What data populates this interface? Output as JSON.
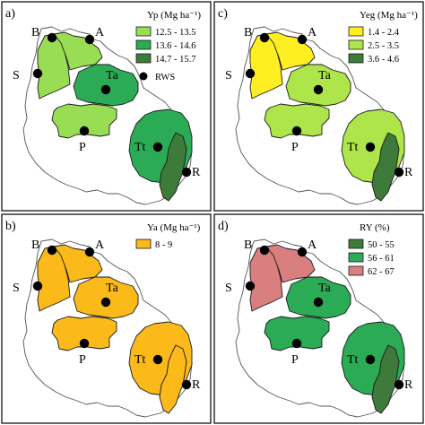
{
  "colors": {
    "green_light": "#99dd55",
    "green_mid": "#2bab55",
    "green_dark": "#3e7a3a",
    "yellow": "#ffee22",
    "yellow_green": "#aee54a",
    "orange": "#fbb91a",
    "pink": "#d97f7f"
  },
  "sites": {
    "B": "B",
    "A": "A",
    "S": "S",
    "Ta": "Ta",
    "P": "P",
    "Tt": "Tt",
    "R": "R"
  },
  "panels": [
    {
      "letter": "a)",
      "legend_title": "Yp (Mg ha⁻¹)",
      "legend": [
        {
          "label": "12.5 - 13.5",
          "color": "#99dd55"
        },
        {
          "label": "13.6 - 14.6",
          "color": "#2bab55"
        },
        {
          "label": "14.7 - 15.7",
          "color": "#3e7a3a"
        }
      ],
      "extra_legend": "RWS",
      "regions": {
        "west": "#99dd55",
        "north": "#99dd55",
        "ta": "#2bab55",
        "p": "#99dd55",
        "tt": "#2bab55",
        "r": "#3e7a3a"
      }
    },
    {
      "letter": "c)",
      "legend_title": "Yeg (Mg ha⁻¹)",
      "legend": [
        {
          "label": "1.4 - 2.4",
          "color": "#ffee22"
        },
        {
          "label": "2.5 - 3.5",
          "color": "#aee54a"
        },
        {
          "label": "3.6 - 4.6",
          "color": "#3e7a3a"
        }
      ],
      "regions": {
        "west": "#ffee22",
        "north": "#ffee22",
        "ta": "#aee54a",
        "p": "#aee54a",
        "tt": "#aee54a",
        "r": "#3e7a3a"
      }
    },
    {
      "letter": "b)",
      "legend_title": "Ya (Mg ha⁻¹)",
      "legend": [
        {
          "label": "8 - 9",
          "color": "#fbb91a"
        }
      ],
      "regions": {
        "west": "#fbb91a",
        "north": "#fbb91a",
        "ta": "#fbb91a",
        "p": "#fbb91a",
        "tt": "#fbb91a",
        "r": "#fbb91a"
      }
    },
    {
      "letter": "d)",
      "legend_title": "RY (%)",
      "legend": [
        {
          "label": "50 - 55",
          "color": "#3e7a3a"
        },
        {
          "label": "56 - 61",
          "color": "#2bab55"
        },
        {
          "label": "62 - 67",
          "color": "#d97f7f"
        }
      ],
      "regions": {
        "west": "#d97f7f",
        "north": "#d97f7f",
        "ta": "#2bab55",
        "p": "#2bab55",
        "tt": "#2bab55",
        "r": "#3e7a3a"
      }
    }
  ]
}
